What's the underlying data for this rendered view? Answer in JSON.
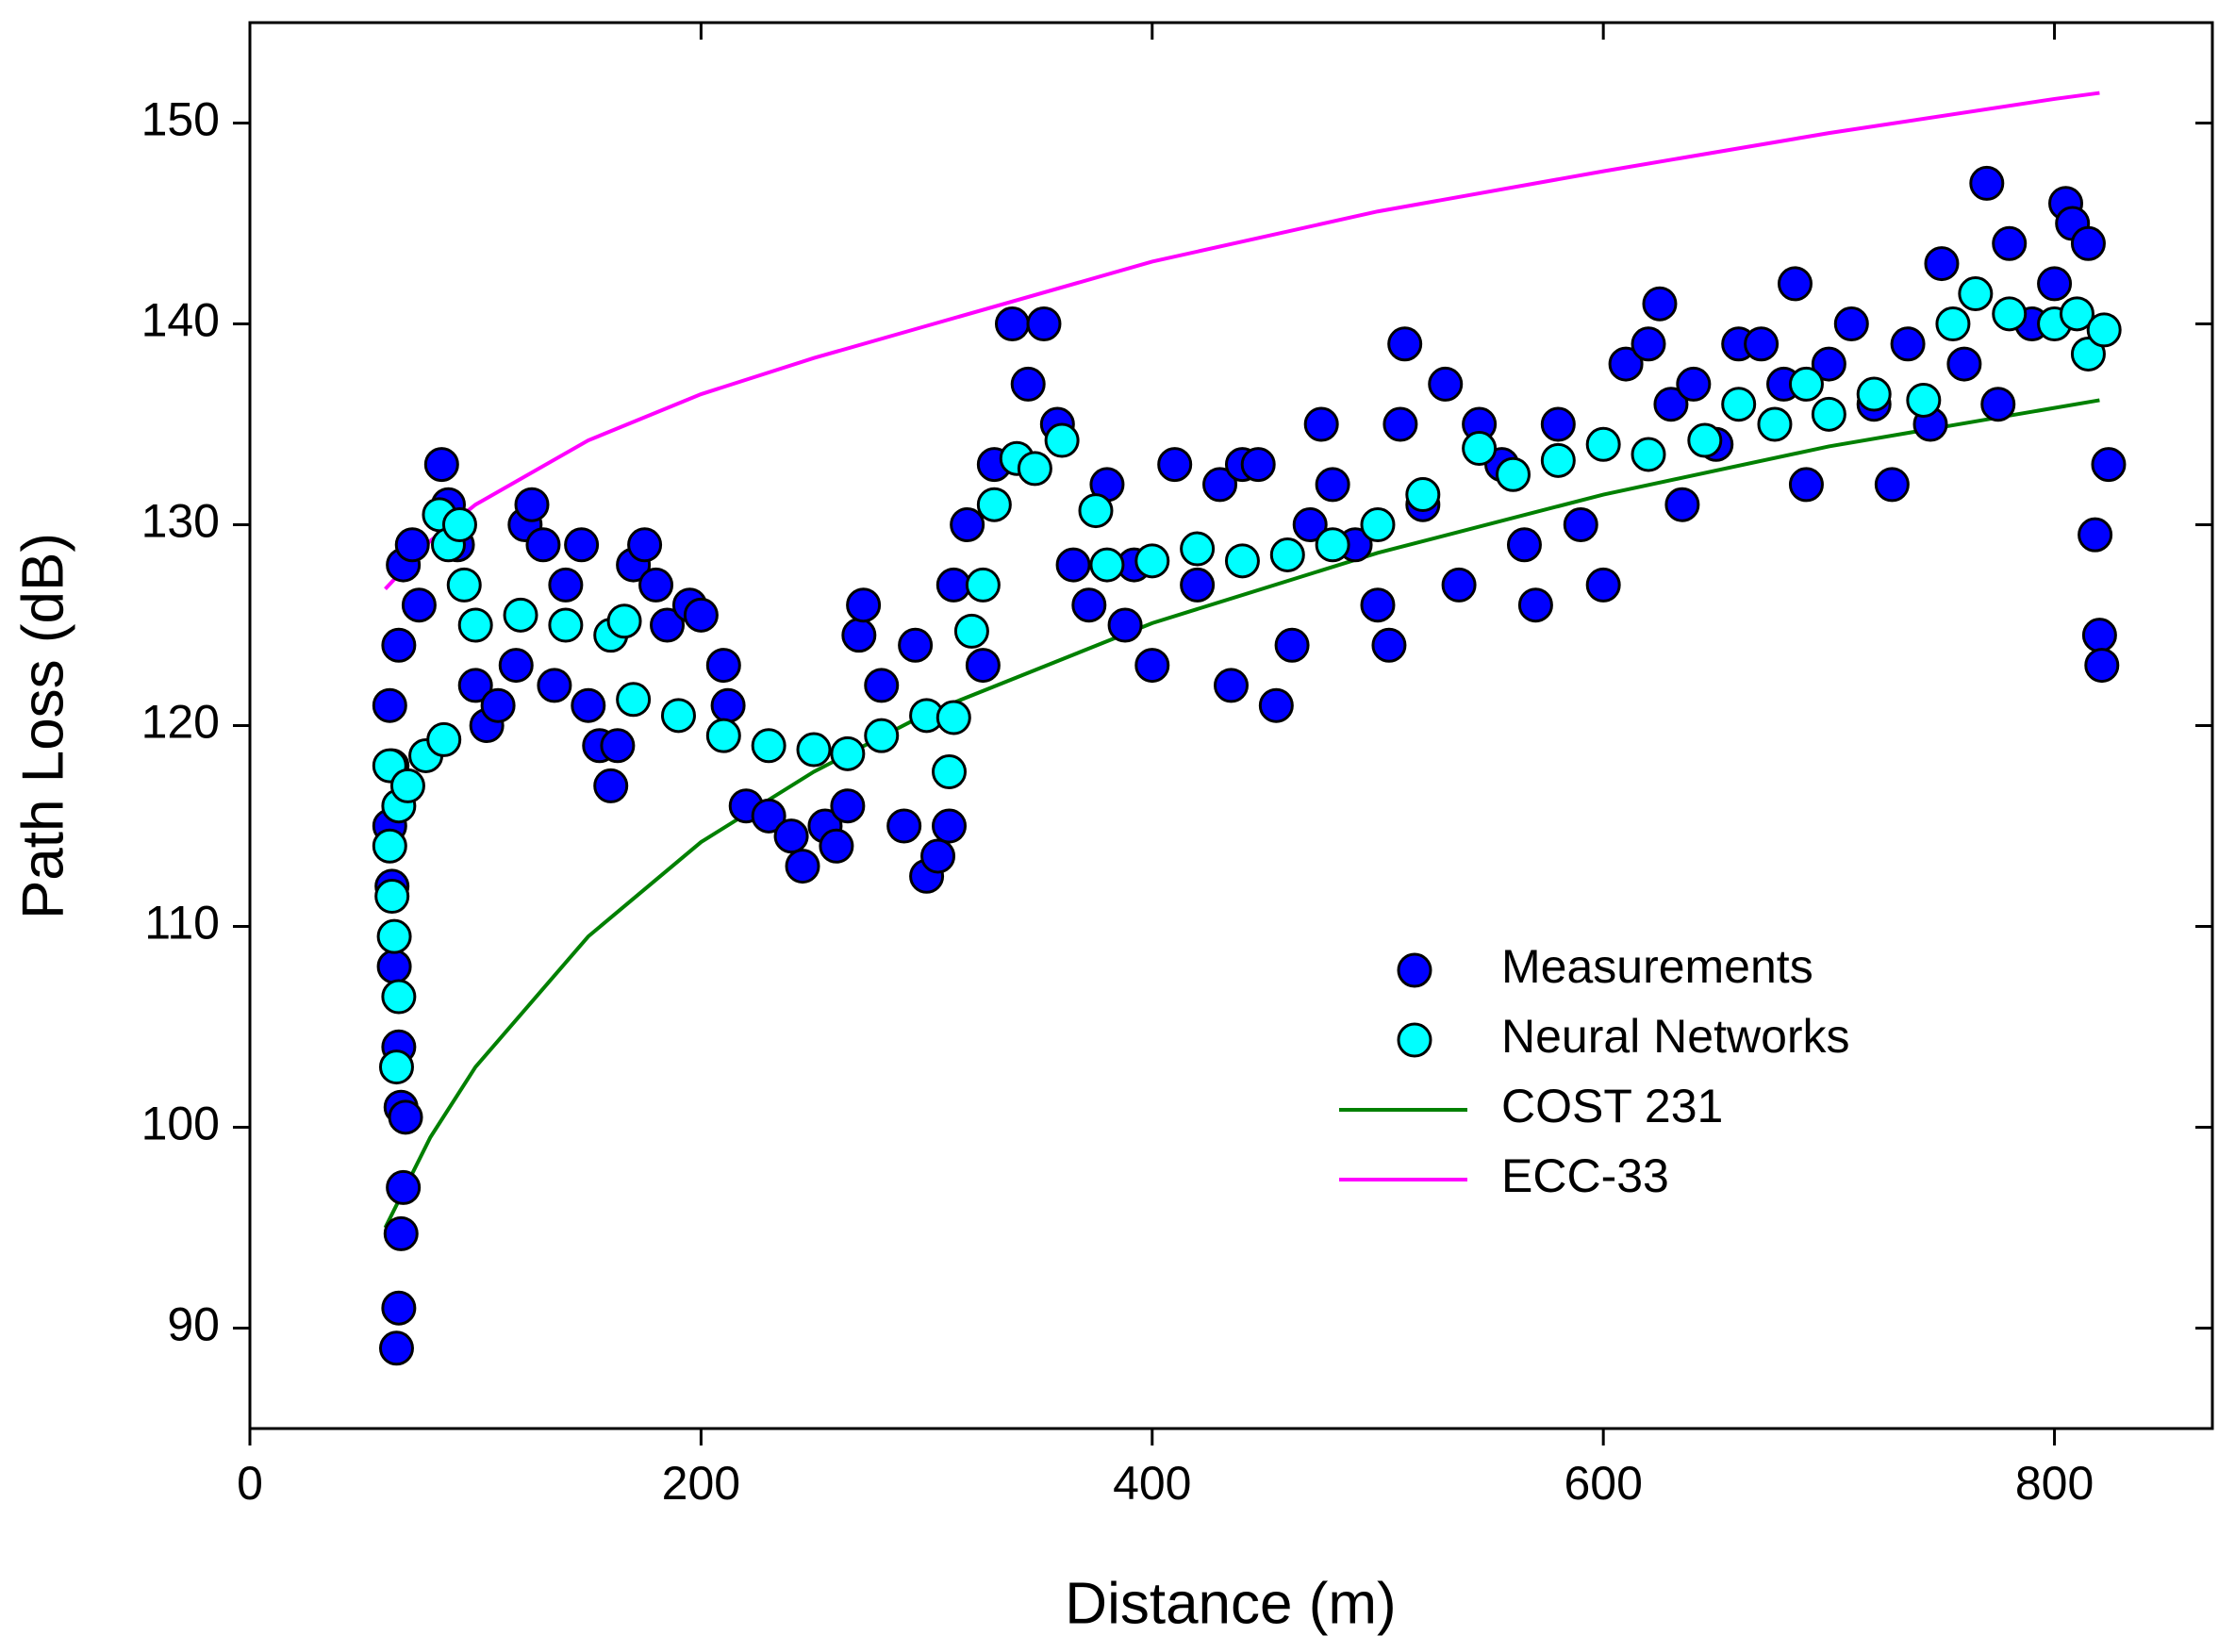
{
  "chart_data": {
    "type": "scatter",
    "xlabel": "Distance (m)",
    "ylabel": "Path Loss (dB)",
    "xlim": [
      0,
      870
    ],
    "xticks": [
      0,
      200,
      400,
      600,
      800
    ],
    "ylim": [
      85,
      155
    ],
    "yticks": [
      90,
      100,
      110,
      120,
      130,
      140,
      150
    ],
    "legend": "right",
    "series": [
      {
        "name": "Measurements",
        "kind": "markers",
        "color": "#0000ff",
        "x": [
          65,
          66,
          67,
          68,
          67,
          69,
          66,
          64,
          63,
          62,
          63,
          62,
          66,
          68,
          72,
          75,
          85,
          88,
          92,
          100,
          105,
          110,
          118,
          122,
          125,
          130,
          135,
          140,
          147,
          150,
          155,
          160,
          163,
          170,
          175,
          180,
          185,
          195,
          200,
          210,
          212,
          220,
          230,
          240,
          245,
          255,
          260,
          265,
          270,
          272,
          280,
          290,
          295,
          300,
          305,
          310,
          312,
          318,
          325,
          330,
          338,
          345,
          352,
          358,
          365,
          372,
          380,
          388,
          392,
          400,
          410,
          420,
          430,
          435,
          440,
          447,
          455,
          462,
          470,
          475,
          480,
          490,
          500,
          505,
          510,
          512,
          520,
          530,
          536,
          545,
          555,
          565,
          570,
          580,
          590,
          600,
          610,
          620,
          625,
          630,
          635,
          640,
          650,
          660,
          670,
          680,
          685,
          690,
          700,
          710,
          720,
          728,
          735,
          745,
          750,
          760,
          770,
          775,
          780,
          790,
          800,
          805,
          808,
          815,
          818,
          820,
          821,
          824
        ],
        "values": [
          89,
          91,
          94.7,
          97,
          101,
          100.5,
          104,
          108,
          112,
          115,
          118,
          121,
          124,
          128,
          129,
          126,
          133,
          131,
          129,
          122,
          120,
          121,
          123,
          130,
          131,
          129,
          122,
          127,
          129,
          121,
          119,
          117,
          119,
          128,
          129,
          127,
          125,
          126,
          125.5,
          123,
          121,
          116,
          115.5,
          114.5,
          113,
          115,
          114,
          116,
          124.5,
          126,
          122,
          115,
          124,
          112.5,
          113.5,
          115,
          127,
          130,
          123,
          133,
          140,
          137,
          140,
          135,
          128,
          126,
          132,
          125,
          128,
          123,
          133,
          127,
          132,
          122,
          133,
          133,
          121,
          124,
          130,
          135,
          132,
          129,
          126,
          124,
          135,
          139,
          131,
          137,
          127,
          135,
          133,
          129,
          126,
          135,
          130,
          127,
          138,
          139,
          141,
          136,
          131,
          137,
          134,
          139,
          139,
          137,
          142,
          132,
          138,
          140,
          136,
          132,
          139,
          135,
          143,
          138,
          147,
          136,
          144,
          140,
          142,
          146,
          145,
          144,
          129.5,
          124.5,
          123,
          133
        ]
      },
      {
        "name": "Neural Networks",
        "kind": "markers",
        "color": "#00ffff",
        "x": [
          65,
          66,
          64,
          63,
          62,
          62,
          66,
          70,
          78,
          86,
          84,
          88,
          93,
          95,
          100,
          120,
          140,
          160,
          166,
          170,
          190,
          210,
          230,
          250,
          265,
          280,
          300,
          310,
          312,
          320,
          325,
          330,
          340,
          348,
          360,
          375,
          380,
          400,
          420,
          440,
          460,
          480,
          500,
          520,
          545,
          560,
          580,
          600,
          620,
          645,
          660,
          676,
          690,
          700,
          720,
          742,
          755,
          765,
          780,
          800,
          810,
          815,
          822
        ],
        "values": [
          103,
          106.5,
          109.5,
          111.5,
          114,
          118,
          116,
          117,
          118.5,
          119.3,
          130.5,
          129,
          130,
          127,
          125,
          125.5,
          125,
          124.5,
          125.2,
          121.3,
          120.5,
          119.5,
          119,
          118.8,
          118.6,
          119.5,
          120.5,
          117.7,
          120.4,
          124.7,
          127,
          131,
          133.3,
          132.8,
          134.2,
          130.7,
          128,
          128.2,
          128.8,
          128.2,
          128.5,
          129,
          130,
          131.5,
          133.8,
          132.5,
          133.2,
          134,
          133.5,
          134.2,
          136,
          135,
          137,
          135.5,
          136.5,
          136.2,
          140,
          141.5,
          140.5,
          140,
          140.5,
          138.5,
          139.7
        ]
      },
      {
        "name": "COST 231",
        "kind": "line",
        "color": "#008000",
        "x": [
          60,
          80,
          100,
          150,
          200,
          250,
          300,
          400,
          500,
          600,
          700,
          820
        ],
        "values": [
          95,
          99.5,
          103,
          109.5,
          114.2,
          117.7,
          120.6,
          125.1,
          128.6,
          131.5,
          133.9,
          136.2
        ]
      },
      {
        "name": "ECC-33",
        "kind": "line",
        "color": "#ff00ff",
        "x": [
          60,
          80,
          100,
          150,
          200,
          250,
          300,
          400,
          500,
          600,
          700,
          800,
          820
        ],
        "values": [
          126.8,
          129.2,
          131,
          134.2,
          136.5,
          138.3,
          139.9,
          143.1,
          145.6,
          147.6,
          149.5,
          151.2,
          151.5
        ]
      }
    ]
  }
}
